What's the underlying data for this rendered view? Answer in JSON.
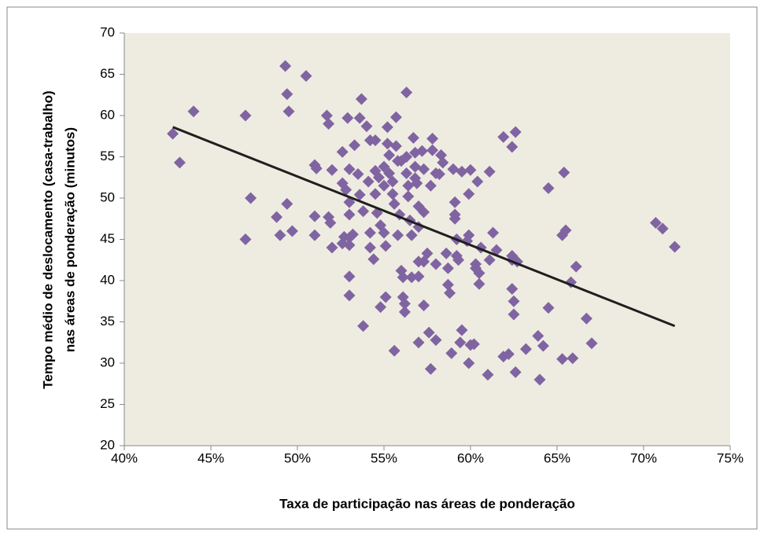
{
  "chart_data": {
    "type": "scatter",
    "xlabel": "Taxa de participação nas áreas de ponderação",
    "ylabel": [
      "Tempo médio de deslocamento (casa-trabalho)",
      "nas áreas de ponderação (minutos)"
    ],
    "xlim": [
      40,
      75
    ],
    "xticks": [
      {
        "value": 40,
        "label": "40%"
      },
      {
        "value": 45,
        "label": "45%"
      },
      {
        "value": 50,
        "label": "50%"
      },
      {
        "value": 55,
        "label": "55%"
      },
      {
        "value": 60,
        "label": "60%"
      },
      {
        "value": 65,
        "label": "65%"
      },
      {
        "value": 70,
        "label": "70%"
      },
      {
        "value": 75,
        "label": "75%"
      }
    ],
    "ylim": [
      20,
      70
    ],
    "yticks": [
      20,
      25,
      30,
      35,
      40,
      45,
      50,
      55,
      60,
      65,
      70
    ],
    "color": "#8064a2",
    "background": "#eeece1",
    "x": [
      42.8,
      43.2,
      44.0,
      47.0,
      47.0,
      47.3,
      48.8,
      49.0,
      49.3,
      49.4,
      49.5,
      49.4,
      49.7,
      50.5,
      51.0,
      51.1,
      51.0,
      51.0,
      51.7,
      51.8,
      51.8,
      51.9,
      52.0,
      52.0,
      52.6,
      52.6,
      52.8,
      52.7,
      52.6,
      52.9,
      53.0,
      53.0,
      53.0,
      53.0,
      53.0,
      53.0,
      53.0,
      53.2,
      53.3,
      53.5,
      53.6,
      53.6,
      53.8,
      53.8,
      53.7,
      54.0,
      54.2,
      54.1,
      54.2,
      54.2,
      54.4,
      54.5,
      54.5,
      54.5,
      54.6,
      54.7,
      54.8,
      54.8,
      55.0,
      55.0,
      55.0,
      55.1,
      55.1,
      55.2,
      55.2,
      55.3,
      55.3,
      55.5,
      55.5,
      55.6,
      55.7,
      55.7,
      55.8,
      55.9,
      55.8,
      55.6,
      56.0,
      56.0,
      56.1,
      56.1,
      56.2,
      56.2,
      56.3,
      56.3,
      56.3,
      56.4,
      56.4,
      56.5,
      56.6,
      56.6,
      56.7,
      56.8,
      56.8,
      56.8,
      56.9,
      57.0,
      57.0,
      57.0,
      57.0,
      57.0,
      57.2,
      57.3,
      57.3,
      57.3,
      57.3,
      57.5,
      57.6,
      57.7,
      57.7,
      57.8,
      57.8,
      58.0,
      58.0,
      58.0,
      58.2,
      58.3,
      58.4,
      58.6,
      58.7,
      58.7,
      58.8,
      58.9,
      59.0,
      59.1,
      59.1,
      59.1,
      59.2,
      59.2,
      59.3,
      59.4,
      59.5,
      59.5,
      59.8,
      59.9,
      59.9,
      60.0,
      60.0,
      59.9,
      60.2,
      60.3,
      60.3,
      60.4,
      60.5,
      60.5,
      60.6,
      61.0,
      61.1,
      61.1,
      61.3,
      61.5,
      61.9,
      61.9,
      62.2,
      62.4,
      62.4,
      62.4,
      62.4,
      62.5,
      62.5,
      62.6,
      62.6,
      62.7,
      63.2,
      63.9,
      64.0,
      64.2,
      64.5,
      64.5,
      65.3,
      65.3,
      65.4,
      65.5,
      65.8,
      65.9,
      66.1,
      66.7,
      67.0,
      70.7,
      71.1,
      71.8
    ],
    "values": [
      57.8,
      54.3,
      60.5,
      60.0,
      45.0,
      50.0,
      47.7,
      45.5,
      66.0,
      62.6,
      60.5,
      49.3,
      46.0,
      64.8,
      54.0,
      53.6,
      47.8,
      45.5,
      60.0,
      59.0,
      47.7,
      47.0,
      44.0,
      53.4,
      55.6,
      51.8,
      51.0,
      45.3,
      44.5,
      59.7,
      53.5,
      49.5,
      48.0,
      45.2,
      44.3,
      40.5,
      38.2,
      45.6,
      56.4,
      52.9,
      59.7,
      50.4,
      48.4,
      34.5,
      62.0,
      58.7,
      57.0,
      52.0,
      45.8,
      44.0,
      42.6,
      57.0,
      53.3,
      50.5,
      48.2,
      52.5,
      46.7,
      36.8,
      53.8,
      51.5,
      45.8,
      44.2,
      38.0,
      58.6,
      56.6,
      55.2,
      53.0,
      52.0,
      50.5,
      49.3,
      59.8,
      56.3,
      54.5,
      48.0,
      45.5,
      31.5,
      54.5,
      41.2,
      40.4,
      38.0,
      36.2,
      37.2,
      62.8,
      55.0,
      53.0,
      51.5,
      50.2,
      47.3,
      45.5,
      40.4,
      57.3,
      55.5,
      53.8,
      52.4,
      51.8,
      49.0,
      46.5,
      42.3,
      40.5,
      32.5,
      55.7,
      53.5,
      48.3,
      42.3,
      37.0,
      43.3,
      33.7,
      29.3,
      51.5,
      57.2,
      55.8,
      53.0,
      42.0,
      32.8,
      52.9,
      55.2,
      54.3,
      43.3,
      41.5,
      39.5,
      38.5,
      31.2,
      53.5,
      49.5,
      48.0,
      47.5,
      45.0,
      43.0,
      42.5,
      32.5,
      34.0,
      53.2,
      44.8,
      45.5,
      50.5,
      53.4,
      32.2,
      30.0,
      32.3,
      42.0,
      41.5,
      52.0,
      40.9,
      39.6,
      44.0,
      28.6,
      53.2,
      42.5,
      45.8,
      43.7,
      57.4,
      30.8,
      31.1,
      56.2,
      43.0,
      42.5,
      39.0,
      37.5,
      35.9,
      58.0,
      28.9,
      42.3,
      31.7,
      33.3,
      28.0,
      32.1,
      51.2,
      36.7,
      30.5,
      45.5,
      53.1,
      46.1,
      39.8,
      30.6,
      41.7,
      35.4,
      32.4,
      47.0,
      46.3,
      44.1
    ],
    "trendline": {
      "color": "#1f1f1f",
      "x": [
        42.8,
        71.8
      ],
      "values": [
        58.6,
        34.5
      ]
    }
  }
}
